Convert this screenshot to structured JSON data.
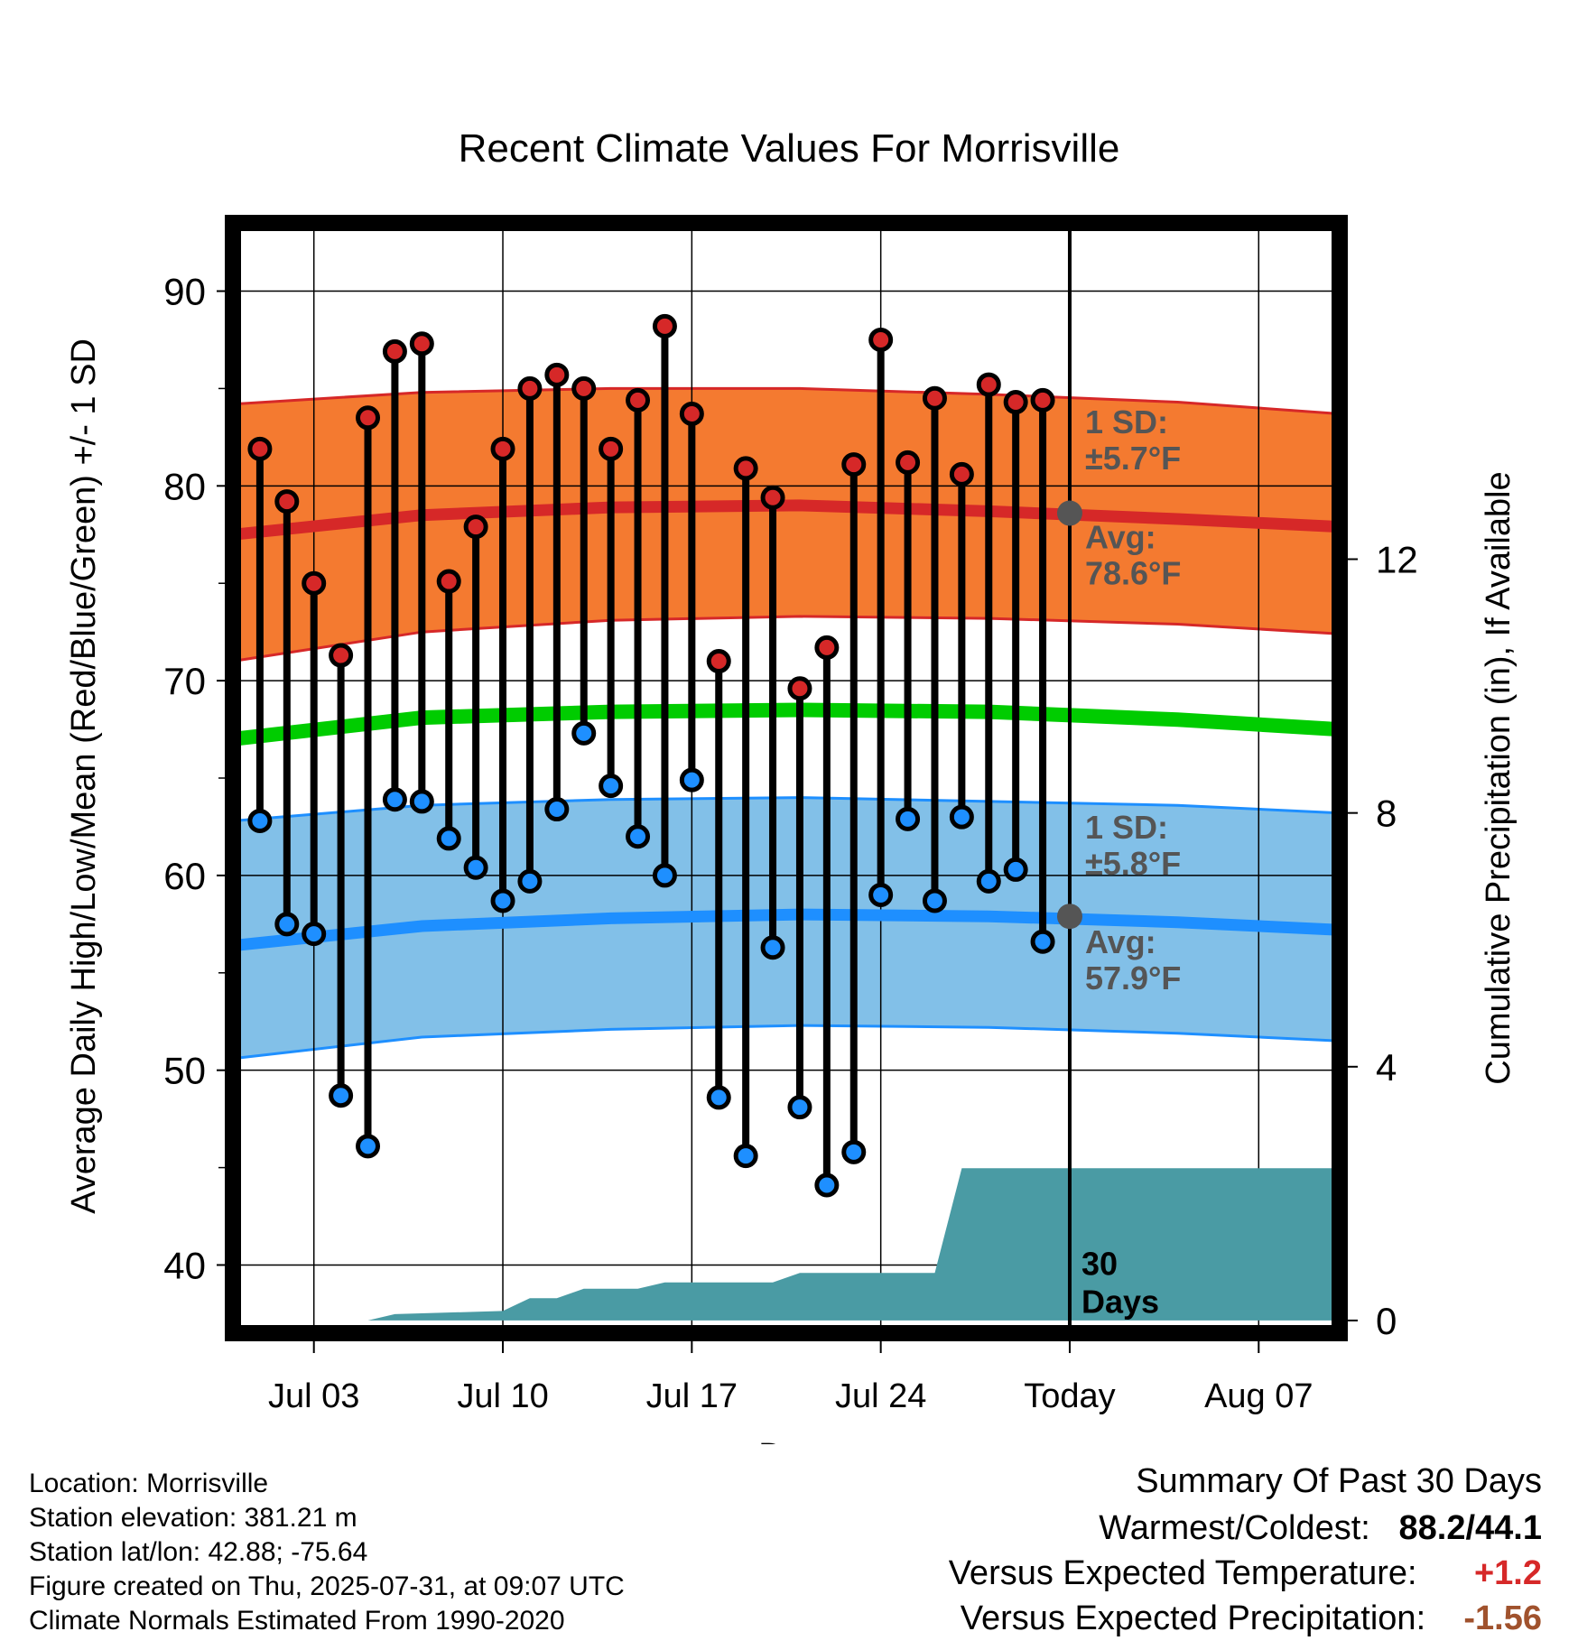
{
  "colors": {
    "high_fill": "#f47a30",
    "high_line": "#d62828",
    "low_fill": "#82c0e8",
    "low_line": "#1e8fff",
    "mean_line": "#00cc00",
    "precip_fill": "#4a9ba4",
    "high_dot": "#d62828",
    "low_dot": "#1e8fff",
    "today_marker": "#555555",
    "annotation_text": "#555555",
    "warm_value": "#d62828",
    "precip_value": "#a0522d"
  },
  "chart_data": {
    "type": "line",
    "title": "Recent Climate Values For Morrisville",
    "xlabel": "Day",
    "ylabel": "Average Daily High/Low/Mean (Red/Blue/Green) +/- 1 SD",
    "y2label": "Cumulative Precipitation (in), If Available",
    "ylim": [
      36.5,
      93.5
    ],
    "y2lim": [
      -0.2,
      17.3
    ],
    "yticks": [
      "40",
      "50",
      "60",
      "70",
      "80",
      "90"
    ],
    "y2ticks": [
      "0",
      "4",
      "8",
      "12"
    ],
    "xlim": [
      "2025-06-30",
      "2025-08-10"
    ],
    "xticks": [
      {
        "date": "2025-07-03",
        "label": "Jul 03"
      },
      {
        "date": "2025-07-10",
        "label": "Jul 10"
      },
      {
        "date": "2025-07-17",
        "label": "Jul 17"
      },
      {
        "date": "2025-07-24",
        "label": "Jul 24"
      },
      {
        "date": "2025-07-31",
        "label": "Today"
      },
      {
        "date": "2025-08-07",
        "label": "Aug 07"
      }
    ],
    "today": "2025-07-31",
    "window_label": [
      "30",
      "Days"
    ],
    "daily": {
      "dates": [
        "2025-07-01",
        "2025-07-02",
        "2025-07-03",
        "2025-07-04",
        "2025-07-05",
        "2025-07-06",
        "2025-07-07",
        "2025-07-08",
        "2025-07-09",
        "2025-07-10",
        "2025-07-11",
        "2025-07-12",
        "2025-07-13",
        "2025-07-14",
        "2025-07-15",
        "2025-07-16",
        "2025-07-17",
        "2025-07-18",
        "2025-07-19",
        "2025-07-20",
        "2025-07-21",
        "2025-07-22",
        "2025-07-23",
        "2025-07-24",
        "2025-07-25",
        "2025-07-26",
        "2025-07-27",
        "2025-07-28",
        "2025-07-29",
        "2025-07-30"
      ],
      "highs": [
        81.9,
        79.2,
        75.0,
        71.3,
        83.5,
        86.9,
        87.3,
        75.1,
        77.9,
        81.9,
        85.0,
        85.7,
        85.0,
        81.9,
        84.4,
        88.2,
        83.7,
        71.0,
        80.9,
        79.4,
        69.6,
        71.7,
        81.1,
        87.5,
        81.2,
        84.5,
        80.6,
        85.2,
        84.3,
        84.4
      ],
      "lows": [
        62.8,
        57.5,
        57.0,
        48.7,
        46.1,
        63.9,
        63.8,
        61.9,
        60.4,
        58.7,
        59.7,
        63.4,
        67.3,
        64.6,
        62.0,
        60.0,
        64.9,
        48.6,
        45.6,
        56.3,
        48.1,
        44.1,
        45.8,
        59.0,
        62.9,
        58.7,
        63.0,
        59.7,
        60.3,
        56.6
      ]
    },
    "normals": {
      "dates": [
        "2025-06-30",
        "2025-07-07",
        "2025-07-14",
        "2025-07-21",
        "2025-07-28",
        "2025-08-04",
        "2025-08-10"
      ],
      "high_avg": [
        77.5,
        78.5,
        78.9,
        79.0,
        78.7,
        78.3,
        77.9
      ],
      "high_plus_sd": [
        84.2,
        84.8,
        85.0,
        85.0,
        84.7,
        84.3,
        83.7
      ],
      "high_minus_sd": [
        71.0,
        72.5,
        73.1,
        73.3,
        73.2,
        72.9,
        72.4
      ],
      "mean": [
        67.0,
        68.1,
        68.4,
        68.5,
        68.4,
        68.0,
        67.5
      ],
      "low_avg": [
        56.4,
        57.4,
        57.8,
        58.0,
        57.9,
        57.6,
        57.2
      ],
      "low_plus_sd": [
        62.8,
        63.6,
        63.9,
        64.0,
        63.8,
        63.6,
        63.2
      ],
      "low_minus_sd": [
        50.6,
        51.7,
        52.1,
        52.3,
        52.2,
        51.9,
        51.5
      ]
    },
    "precipitation": {
      "dates": [
        "2025-06-30",
        "2025-07-05",
        "2025-07-06",
        "2025-07-10",
        "2025-07-11",
        "2025-07-12",
        "2025-07-13",
        "2025-07-15",
        "2025-07-16",
        "2025-07-20",
        "2025-07-21",
        "2025-07-26",
        "2025-07-27",
        "2025-08-10"
      ],
      "cumulative": [
        0.0,
        0.0,
        0.1,
        0.15,
        0.35,
        0.35,
        0.5,
        0.5,
        0.6,
        0.6,
        0.75,
        0.75,
        2.4,
        2.4
      ]
    },
    "annotations": {
      "high_sd_label": [
        "1 SD:",
        "±5.7°F"
      ],
      "high_avg_label": [
        "Avg:",
        "78.6°F"
      ],
      "low_sd_label": [
        "1 SD:",
        "±5.8°F"
      ],
      "low_avg_label": [
        "Avg:",
        "57.9°F"
      ],
      "today_high_avg": 78.6,
      "today_low_avg": 57.9
    }
  },
  "info": {
    "location": "Location: Morrisville",
    "elevation": "Station elevation: 381.21 m",
    "latlon": "Station lat/lon: 42.88; -75.64",
    "created": "Figure created on Thu, 2025-07-31, at 09:07 UTC",
    "normals": "Climate Normals Estimated From 1990-2020"
  },
  "summary": {
    "title": "Summary Of Past 30 Days",
    "warm_cold_label": "Warmest/Coldest:",
    "warm_cold_value": "88.2/44.1",
    "temp_label": "Versus Expected Temperature:",
    "temp_value": "+1.2",
    "precip_label": "Versus Expected Precipitation:",
    "precip_value": "-1.56"
  }
}
